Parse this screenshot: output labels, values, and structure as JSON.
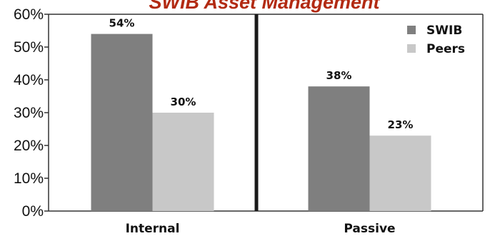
{
  "chart_data": {
    "type": "bar",
    "title": "SWIB Asset Management",
    "xlabel": "",
    "ylabel": "",
    "categories": [
      "Internal",
      "Passive"
    ],
    "series": [
      {
        "name": "SWIB",
        "values": [
          54,
          38
        ],
        "color": "#7f7f7f"
      },
      {
        "name": "Peers",
        "values": [
          30,
          23
        ],
        "color": "#c8c8c8"
      }
    ],
    "value_suffix": "%",
    "ylim": [
      0,
      60
    ],
    "yticks": [
      0,
      10,
      20,
      30,
      40,
      50,
      60
    ],
    "ytick_labels": [
      "0%",
      "10%",
      "20%",
      "30%",
      "40%",
      "50%",
      "60%"
    ],
    "grid": false,
    "legend_position": "top-right",
    "divider_color": "#1a1a1a"
  }
}
